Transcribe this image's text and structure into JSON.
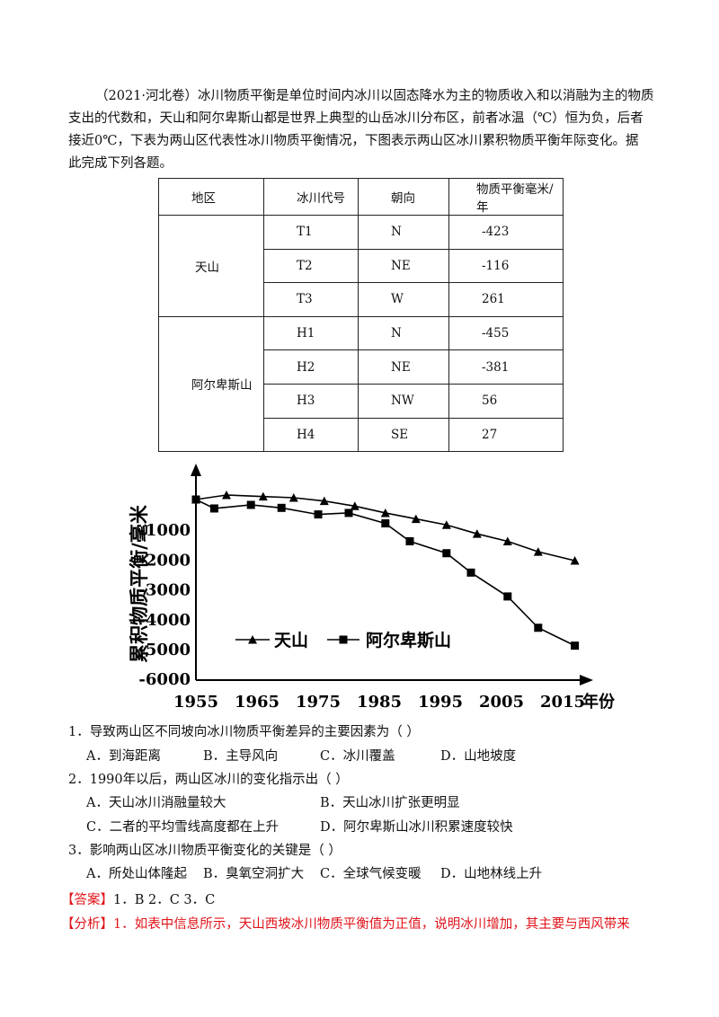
{
  "intro": {
    "lines": [
      "（2021·河北卷）冰川物质平衡是单位时间内冰川以固态降水为主的物质收入和以消融为主的物质",
      "支出的代数和，天山和阿尔卑斯山都是世界上典型的山岳冰川分布区，前者冰温（℃）恒为负，后者",
      "接近0℃，下表为两山区代表性冰川物质平衡情况，下图表示两山区冰川累积物质平衡年际变化。据",
      "此完成下列各题。"
    ]
  },
  "table": {
    "headers": [
      "地区",
      "冰川代号",
      "朝向",
      "物质平衡毫米/年"
    ],
    "groups": [
      {
        "region": "天山",
        "rows": [
          {
            "code": "T1",
            "dir": "N",
            "value": "-423"
          },
          {
            "code": "T2",
            "dir": "NE",
            "value": "-116"
          },
          {
            "code": "T3",
            "dir": "W",
            "value": "261"
          }
        ]
      },
      {
        "region": "阿尔卑斯山",
        "rows": [
          {
            "code": "H1",
            "dir": "N",
            "value": "-455"
          },
          {
            "code": "H2",
            "dir": "NE",
            "value": "-381"
          },
          {
            "code": "H3",
            "dir": "NW",
            "value": "56"
          },
          {
            "code": "H4",
            "dir": "SE",
            "value": "27"
          }
        ]
      }
    ]
  },
  "chart_data": {
    "type": "line",
    "ylabel": "累积物质平衡/毫米",
    "xlabel": "年份",
    "xticks": [
      "1955",
      "1965",
      "1975",
      "1985",
      "1995",
      "2005",
      "2015"
    ],
    "yticks": [
      "-1000",
      "-2000",
      "-3000",
      "-4000",
      "-5000",
      "-6000"
    ],
    "xlim": [
      1955,
      2020
    ],
    "ylim": [
      -6000,
      0
    ],
    "legend_position": "bottom-center",
    "series": [
      {
        "name": "天山",
        "marker": "triangle",
        "x": [
          1955,
          1960,
          1966,
          1971,
          1976,
          1981,
          1986,
          1991,
          1996,
          2001,
          2006,
          2011,
          2017
        ],
        "y": [
          0,
          150,
          100,
          60,
          -50,
          -220,
          -450,
          -650,
          -850,
          -1150,
          -1400,
          -1750,
          -2050
        ]
      },
      {
        "name": "阿尔卑斯山",
        "marker": "square",
        "x": [
          1955,
          1958,
          1964,
          1969,
          1975,
          1980,
          1986,
          1990,
          1996,
          2000,
          2006,
          2011,
          2017
        ],
        "y": [
          0,
          -300,
          -180,
          -280,
          -500,
          -450,
          -800,
          -1400,
          -1800,
          -2450,
          -3250,
          -4300,
          -4900
        ]
      }
    ]
  },
  "questions": [
    {
      "stem": "1．导致两山区不同坡向冰川物质平衡差异的主要因素为（    ）",
      "options": [
        "A．到海距离",
        "B．主导风向",
        "C．冰川覆盖",
        "D．山地坡度"
      ]
    },
    {
      "stem": "2．1990年以后，两山区冰川的变化指示出（    ）",
      "options": [
        "A．天山冰川消融量较大",
        "B．天山冰川扩张更明显",
        "C．二者的平均雪线高度都在上升",
        "D．阿尔卑斯山冰川积累速度较快"
      ]
    },
    {
      "stem": "3．影响两山区冰川物质平衡变化的关键是（    ）",
      "options": [
        "A．所处山体隆起",
        "B．臭氧空洞扩大",
        "C．全球气候变暖",
        "D．山地林线上升"
      ]
    }
  ],
  "answer": {
    "label": "【答案】",
    "text": "1．B      2．C      3．C"
  },
  "analysis": {
    "label": "【分析】",
    "text": "1．如表中信息所示，天山西坡冰川物质平衡值为正值，说明冰川增加，其主要与西风带来"
  }
}
